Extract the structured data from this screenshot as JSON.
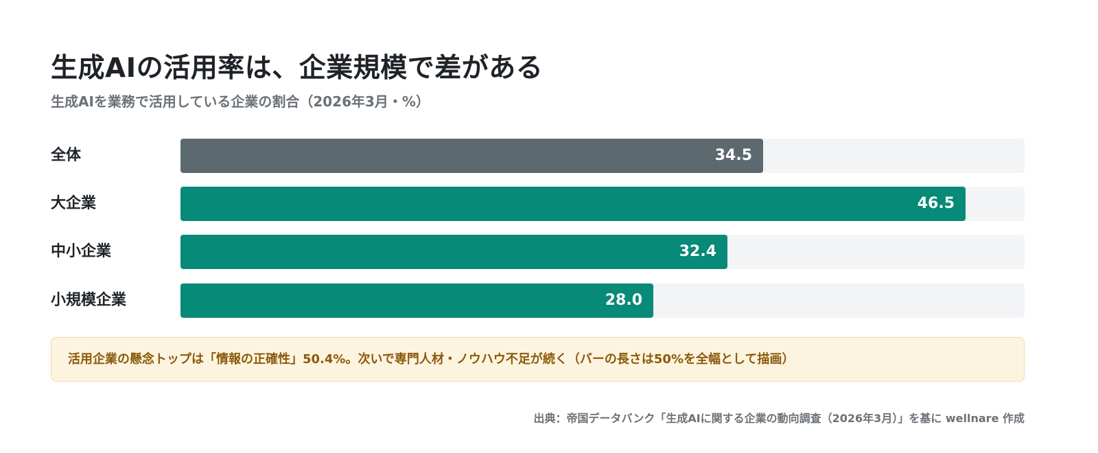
{
  "title": "生成AIの活用率は、企業規模で差がある",
  "subtitle": "生成AIを業務で活用している企業の割合（2026年3月・%）",
  "chart_data": {
    "type": "bar",
    "orientation": "horizontal",
    "categories": [
      "全体",
      "大企業",
      "中小企業",
      "小規模企業"
    ],
    "values": [
      34.5,
      46.5,
      32.4,
      28.0
    ],
    "value_labels": [
      "34.5",
      "46.5",
      "32.4",
      "28.0"
    ],
    "xlim": [
      0,
      50
    ],
    "grid": false,
    "colors": [
      "#5c6a6f",
      "#078a78",
      "#078a78",
      "#078a78"
    ],
    "track_color": "#f3f4f6"
  },
  "note": "活用企業の懸念トップは「情報の正確性」50.4%。次いで専門人材・ノウハウ不足が続く（バーの長さは50%を全幅として描画）",
  "source": "出典：帝国データバンク「生成AIに関する企業の動向調査（2026年3月）」を基に wellnare 作成"
}
